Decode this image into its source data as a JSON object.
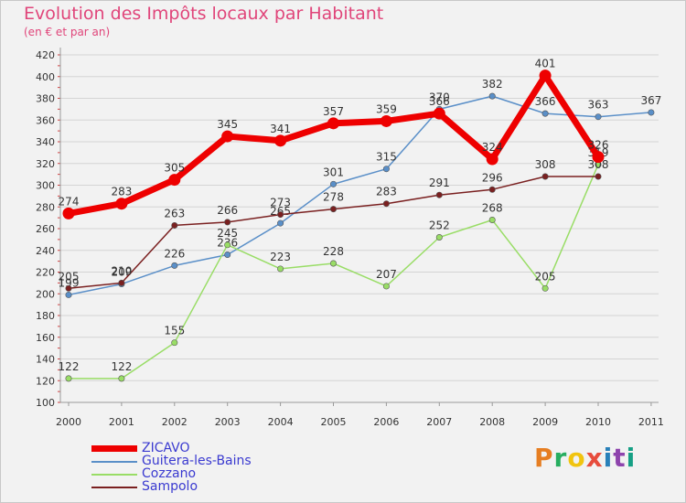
{
  "title": "Evolution des Impôts locaux par Habitant",
  "subtitle": "(en € et par an)",
  "logo": {
    "text": "Proxiti",
    "letters": [
      "P",
      "r",
      "o",
      "x",
      "i",
      "t",
      "i"
    ],
    "colors": [
      "#e67e22",
      "#27ae60",
      "#f1c40f",
      "#e74c3c",
      "#2980b9",
      "#8e44ad",
      "#16a085"
    ]
  },
  "chart_data": {
    "type": "line",
    "title": "Evolution des Impôts locaux par Habitant",
    "ylabel": "(en € et par an)",
    "x": [
      "2000",
      "2001",
      "2002",
      "2003",
      "2004",
      "2005",
      "2006",
      "2007",
      "2008",
      "2009",
      "2010",
      "2011"
    ],
    "ylim": [
      100,
      420
    ],
    "yticks": [
      100,
      120,
      140,
      160,
      180,
      200,
      220,
      240,
      260,
      280,
      300,
      320,
      340,
      360,
      380,
      400,
      420
    ],
    "grid": "horizontal",
    "series": [
      {
        "name": "Guitera-les-Bains",
        "color": "#5a8fc8",
        "values": [
          199,
          209,
          226,
          236,
          265,
          301,
          315,
          370,
          382,
          366,
          363,
          367
        ]
      },
      {
        "name": "Cozzano",
        "color": "#99dd66",
        "values": [
          122,
          122,
          155,
          245,
          223,
          228,
          207,
          252,
          268,
          205,
          319,
          null
        ]
      },
      {
        "name": "Sampolo",
        "color": "#7a2020",
        "values": [
          205,
          210,
          263,
          266,
          273,
          278,
          283,
          291,
          296,
          308,
          308,
          null
        ]
      },
      {
        "name": "ZICAVO",
        "color": "#ee0000",
        "values": [
          274,
          283,
          305,
          345,
          341,
          357,
          359,
          366,
          324,
          401,
          326,
          null
        ]
      }
    ],
    "legend": [
      "ZICAVO",
      "Guitera-les-Bains",
      "Cozzano",
      "Sampolo"
    ]
  }
}
